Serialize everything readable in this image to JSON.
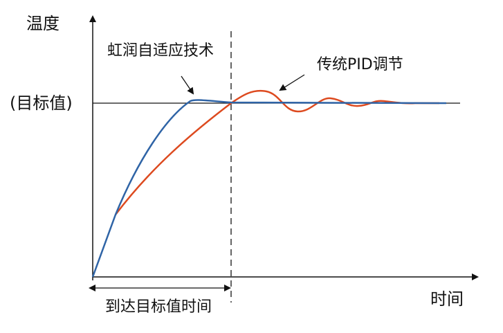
{
  "axes": {
    "y_label": "温度",
    "x_label": "时间",
    "target_label": "(目标值)"
  },
  "annotations": {
    "adaptive": "虹润自适应技术",
    "pid": "传统PID调节",
    "time_to_target": "到达目标值时间"
  },
  "series": [
    {
      "name": "虹润自适应技术",
      "color": "#2f64a6"
    },
    {
      "name": "传统PID调节",
      "color": "#dd4a1f"
    }
  ]
}
